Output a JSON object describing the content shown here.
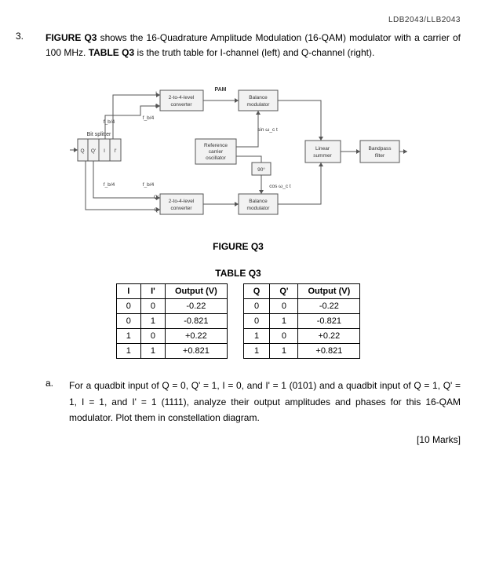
{
  "header_code": "LDB2043/LLB2043",
  "question_number": "3.",
  "intro_html": "FIGURE Q3 shows the 16-Quadrature Amplitude Modulation (16-QAM) modulator with a carrier of 100 MHz. TABLE Q3 is the truth table for I-channel (left) and Q-channel (right).",
  "figure_caption": "FIGURE Q3",
  "table_caption": "TABLE Q3",
  "table_left": {
    "headers": [
      "I",
      "I'",
      "Output (V)"
    ],
    "rows": [
      [
        "0",
        "0",
        "-0.22"
      ],
      [
        "0",
        "1",
        "-0.821"
      ],
      [
        "1",
        "0",
        "+0.22"
      ],
      [
        "1",
        "1",
        "+0.821"
      ]
    ]
  },
  "table_right": {
    "headers": [
      "Q",
      "Q'",
      "Output (V)"
    ],
    "rows": [
      [
        "0",
        "0",
        "-0.22"
      ],
      [
        "0",
        "1",
        "-0.821"
      ],
      [
        "1",
        "0",
        "+0.22"
      ],
      [
        "1",
        "1",
        "+0.821"
      ]
    ]
  },
  "subq_label": "a.",
  "subq_text": "For a quadbit input of Q = 0, Q' = 1, I = 0, and I' = 1 (0101) and a quadbit input of Q = 1, Q' = 1, I = 1, and I' = 1 (1111), analyze their output amplitudes and phases for this 16-QAM modulator. Plot them in constellation diagram.",
  "marks": "[10 Marks]",
  "diagram": {
    "labels": {
      "pam": "PAM",
      "conv": "2-to-4-level",
      "conv2": "converter",
      "balmod": "Balance",
      "balmod2": "modulator",
      "refc": "Reference",
      "refc2": "carrier",
      "refc3": "oscillator",
      "lin": "Linear",
      "lin2": "summer",
      "bpf": "Bandpass",
      "bpf2": "filter",
      "bit": "Bit splitter",
      "fb4": "f_b/4",
      "sin": "sin ω_c t",
      "cos": "cos ω_c t",
      "ninety": "90°",
      "I": "I",
      "Ip": "I'",
      "Q": "Q",
      "Qp": "Q'"
    }
  }
}
